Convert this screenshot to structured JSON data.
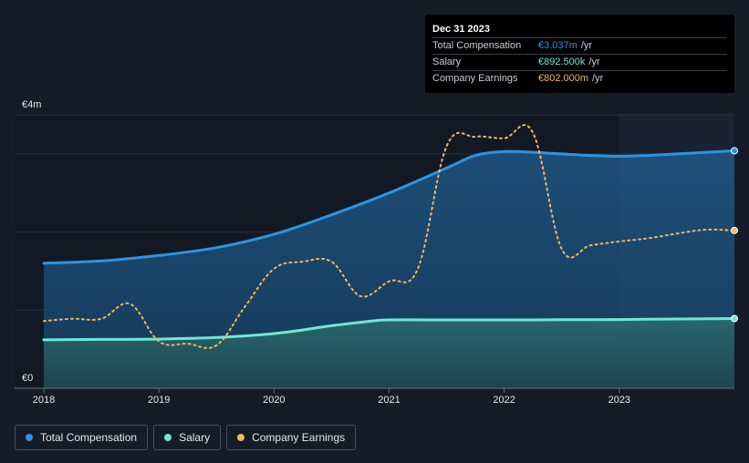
{
  "colors": {
    "background": "#151b27",
    "total_compensation": "#2d94e0",
    "salary": "#6ee8d5",
    "company_earnings": "#f0b860",
    "forecast_shade": "#1b2231"
  },
  "tooltip": {
    "date": "Dec 31 2023",
    "rows": [
      {
        "label": "Total Compensation",
        "value": "€3.037m",
        "unit": "/yr",
        "color": "#2d94e0"
      },
      {
        "label": "Salary",
        "value": "€892.500k",
        "unit": "/yr",
        "color": "#6ee8d5"
      },
      {
        "label": "Company Earnings",
        "value": "€802.000m",
        "unit": "/yr",
        "color": "#f0b860"
      }
    ]
  },
  "legend": [
    {
      "label": "Total Compensation",
      "color": "#2d94e0"
    },
    {
      "label": "Salary",
      "color": "#6ee8d5"
    },
    {
      "label": "Company Earnings",
      "color": "#f0b860"
    }
  ],
  "chart_data": {
    "type": "area",
    "title": "",
    "xlabel": "",
    "ylabel": "",
    "ylim": [
      0,
      3.5
    ],
    "xlim": [
      2018.0,
      2024.0
    ],
    "y_tick_labels": [
      {
        "value": 3.5,
        "label": "€4m"
      },
      {
        "value": 0,
        "label": "€0"
      }
    ],
    "x_ticks": [
      {
        "value": 2018.0,
        "label": "2018"
      },
      {
        "value": 2019.0,
        "label": "2019"
      },
      {
        "value": 2020.0,
        "label": "2020"
      },
      {
        "value": 2021.0,
        "label": "2021"
      },
      {
        "value": 2022.0,
        "label": "2022"
      },
      {
        "value": 2023.0,
        "label": "2023"
      }
    ],
    "grid_values": [
      1.0,
      2.0,
      3.0,
      3.5
    ],
    "forecast_start": 2023.0,
    "series": [
      {
        "name": "Total Compensation",
        "color": "#2d94e0",
        "style": "line-area",
        "x": [
          2018.0,
          2018.5,
          2019.0,
          2019.5,
          2020.0,
          2020.5,
          2021.0,
          2021.5,
          2021.75,
          2022.0,
          2022.25,
          2022.5,
          2022.75,
          2023.0,
          2023.25,
          2023.5,
          2023.75,
          2024.0
        ],
        "y": [
          1.6,
          1.63,
          1.7,
          1.8,
          1.97,
          2.22,
          2.5,
          2.82,
          2.98,
          3.03,
          3.02,
          3.0,
          2.98,
          2.97,
          2.98,
          3.0,
          3.02,
          3.04
        ]
      },
      {
        "name": "Salary",
        "color": "#6ee8d5",
        "style": "line-area",
        "x": [
          2018.0,
          2018.5,
          2019.0,
          2019.5,
          2020.0,
          2020.5,
          2020.85,
          2021.0,
          2021.5,
          2022.0,
          2022.5,
          2023.0,
          2023.5,
          2024.0
        ],
        "y": [
          0.62,
          0.625,
          0.63,
          0.65,
          0.7,
          0.8,
          0.86,
          0.875,
          0.875,
          0.875,
          0.877,
          0.88,
          0.887,
          0.8925
        ]
      },
      {
        "name": "Company Earnings",
        "color": "#f0b860",
        "style": "dotted",
        "x": [
          2018.0,
          2018.25,
          2018.5,
          2018.75,
          2019.0,
          2019.25,
          2019.5,
          2019.75,
          2020.0,
          2020.25,
          2020.5,
          2020.75,
          2021.0,
          2021.25,
          2021.5,
          2021.75,
          2022.0,
          2022.25,
          2022.5,
          2022.75,
          2023.0,
          2023.25,
          2023.5,
          2023.75,
          2024.0
        ],
        "y": [
          0.86,
          0.89,
          0.89,
          1.08,
          0.6,
          0.57,
          0.55,
          1.05,
          1.53,
          1.62,
          1.62,
          1.18,
          1.37,
          1.53,
          3.1,
          3.22,
          3.2,
          3.27,
          1.78,
          1.83,
          1.88,
          1.92,
          1.98,
          2.03,
          2.02
        ]
      }
    ]
  }
}
